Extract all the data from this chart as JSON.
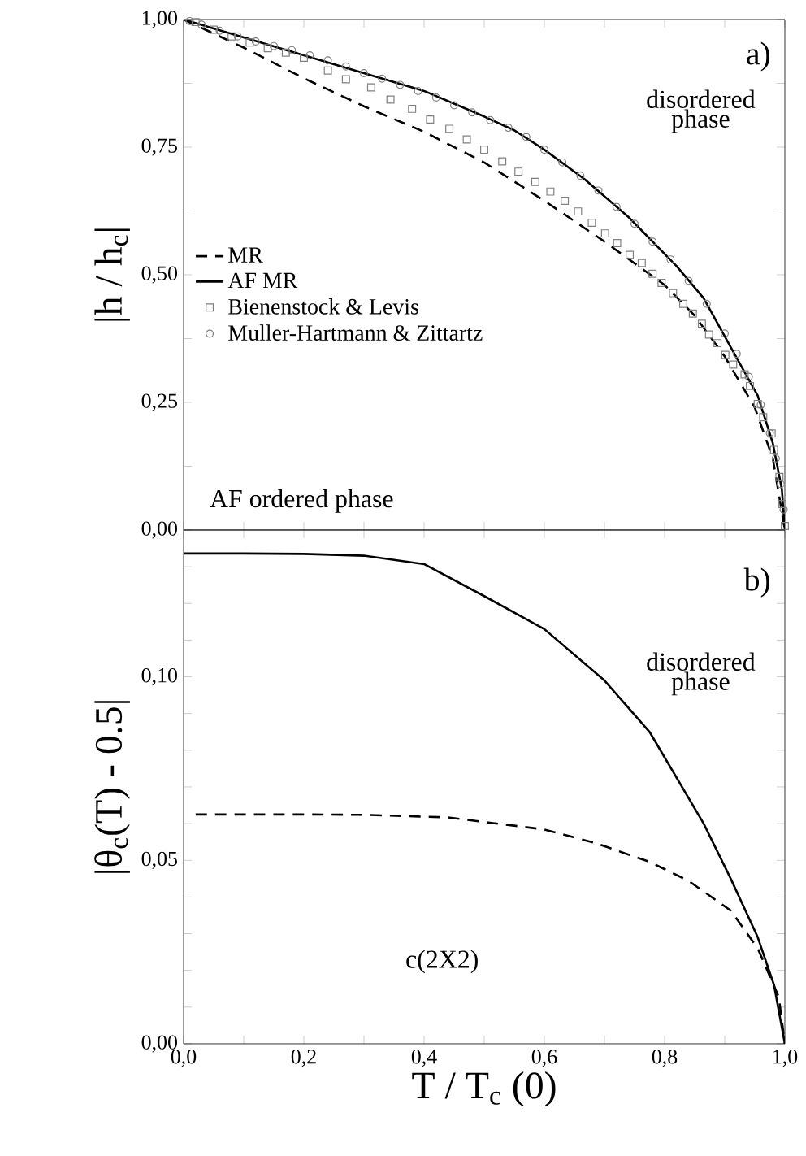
{
  "chart_data": [
    {
      "type": "line",
      "ylabel": "|h / h$_{c}$|",
      "xlim": [
        0,
        1
      ],
      "ylim": [
        0,
        1
      ],
      "tick_labels": "y",
      "legend": "left",
      "xticks": [
        {
          "value": 0,
          "label": null
        },
        {
          "value": 0.1,
          "label": null
        },
        {
          "value": 0.2,
          "label": null
        },
        {
          "value": 0.3,
          "label": null
        },
        {
          "value": 0.4,
          "label": null
        },
        {
          "value": 0.5,
          "label": null
        },
        {
          "value": 0.6,
          "label": null
        },
        {
          "value": 0.7,
          "label": null
        },
        {
          "value": 0.8,
          "label": null
        },
        {
          "value": 0.9,
          "label": null
        },
        {
          "value": 1,
          "label": null
        }
      ],
      "yticks": [
        {
          "value": 0,
          "label": "0,00"
        },
        {
          "value": 0.125,
          "label": null
        },
        {
          "value": 0.25,
          "label": "0,25"
        },
        {
          "value": 0.375,
          "label": null
        },
        {
          "value": 0.5,
          "label": "0,50"
        },
        {
          "value": 0.625,
          "label": null
        },
        {
          "value": 0.75,
          "label": "0,75"
        },
        {
          "value": 0.875,
          "label": null
        },
        {
          "value": 1,
          "label": "1,00"
        }
      ],
      "annotations": [
        "a)",
        "disordered phase",
        "AF ordered phase"
      ],
      "series": [
        {
          "name": "MR",
          "line_style": "dashed",
          "color": "#000000",
          "x": [
            0,
            0.1,
            0.2,
            0.3,
            0.4,
            0.5,
            0.6,
            0.7,
            0.8,
            0.85,
            0.9,
            0.95,
            0.98,
            1
          ],
          "values": [
            1,
            0.945,
            0.885,
            0.83,
            0.78,
            0.72,
            0.645,
            0.565,
            0.48,
            0.42,
            0.34,
            0.24,
            0.14,
            0
          ]
        },
        {
          "name": "AF MR",
          "line_style": "solid",
          "color": "#000000",
          "x": [
            0,
            0.1,
            0.2,
            0.3,
            0.4,
            0.5,
            0.55,
            0.6,
            0.667,
            0.74,
            0.82,
            0.865,
            0.91,
            0.955,
            0.98,
            0.995,
            1
          ],
          "values": [
            1,
            0.965,
            0.93,
            0.895,
            0.86,
            0.81,
            0.783,
            0.745,
            0.687,
            0.613,
            0.517,
            0.454,
            0.358,
            0.263,
            0.17,
            0.08,
            0
          ]
        },
        {
          "name": "Bienenstock & Levis",
          "type": "scatter",
          "marker": "square",
          "color": "#808080",
          "x": [
            0.02,
            0.05,
            0.08,
            0.11,
            0.14,
            0.17,
            0.2,
            0.24,
            0.27,
            0.312,
            0.344,
            0.38,
            0.41,
            0.442,
            0.471,
            0.5,
            0.53,
            0.557,
            0.585,
            0.61,
            0.634,
            0.656,
            0.679,
            0.701,
            0.721,
            0.742,
            0.762,
            0.78,
            0.795,
            0.814,
            0.831,
            0.847,
            0.862,
            0.874,
            0.888,
            0.901,
            0.914,
            0.933,
            0.942,
            0.955,
            0.964,
            0.978,
            0.982,
            0.991,
            0.996,
            1
          ],
          "values": [
            0.995,
            0.98,
            0.967,
            0.955,
            0.944,
            0.935,
            0.925,
            0.9,
            0.883,
            0.867,
            0.843,
            0.825,
            0.804,
            0.786,
            0.765,
            0.745,
            0.722,
            0.702,
            0.682,
            0.663,
            0.645,
            0.624,
            0.602,
            0.581,
            0.562,
            0.539,
            0.523,
            0.502,
            0.484,
            0.464,
            0.443,
            0.424,
            0.404,
            0.383,
            0.366,
            0.343,
            0.324,
            0.305,
            0.282,
            0.247,
            0.221,
            0.189,
            0.157,
            0.104,
            0.051,
            0.008
          ]
        },
        {
          "name": "Muller-Hartmann & Zittartz",
          "type": "scatter",
          "marker": "circle",
          "color": "#808080",
          "x": [
            0.01,
            0.03,
            0.06,
            0.09,
            0.12,
            0.15,
            0.18,
            0.21,
            0.24,
            0.27,
            0.3,
            0.33,
            0.36,
            0.39,
            0.42,
            0.45,
            0.48,
            0.51,
            0.54,
            0.57,
            0.6,
            0.63,
            0.66,
            0.69,
            0.72,
            0.75,
            0.78,
            0.81,
            0.84,
            0.87,
            0.9,
            0.92,
            0.94,
            0.96,
            0.975,
            0.985,
            0.993,
            0.998
          ],
          "values": [
            0.997,
            0.99,
            0.978,
            0.967,
            0.957,
            0.948,
            0.94,
            0.93,
            0.92,
            0.908,
            0.895,
            0.884,
            0.872,
            0.86,
            0.847,
            0.832,
            0.818,
            0.803,
            0.788,
            0.77,
            0.745,
            0.72,
            0.694,
            0.665,
            0.633,
            0.6,
            0.565,
            0.53,
            0.488,
            0.443,
            0.385,
            0.345,
            0.3,
            0.245,
            0.19,
            0.14,
            0.09,
            0.04
          ]
        }
      ]
    },
    {
      "type": "line",
      "xlabel": "T / T$_{c}$ (0)",
      "ylabel": "|θ$_{c}$(T) - 0.5|",
      "xlim": [
        0,
        1
      ],
      "ylim": [
        0,
        0.14
      ],
      "xticks": [
        {
          "value": 0,
          "label": "0,0"
        },
        {
          "value": 0.1,
          "label": null
        },
        {
          "value": 0.2,
          "label": "0,2"
        },
        {
          "value": 0.3,
          "label": null
        },
        {
          "value": 0.4,
          "label": "0,4"
        },
        {
          "value": 0.5,
          "label": null
        },
        {
          "value": 0.6,
          "label": "0,6"
        },
        {
          "value": 0.7,
          "label": null
        },
        {
          "value": 0.8,
          "label": "0,8"
        },
        {
          "value": 0.9,
          "label": null
        },
        {
          "value": 1,
          "label": "1,0"
        }
      ],
      "yticks": [
        {
          "value": 0,
          "label": "0,00"
        },
        {
          "value": 0.01,
          "label": null
        },
        {
          "value": 0.02,
          "label": null
        },
        {
          "value": 0.03,
          "label": null
        },
        {
          "value": 0.04,
          "label": null
        },
        {
          "value": 0.05,
          "label": "0,05"
        },
        {
          "value": 0.06,
          "label": null
        },
        {
          "value": 0.07,
          "label": null
        },
        {
          "value": 0.08,
          "label": null
        },
        {
          "value": 0.09,
          "label": null
        },
        {
          "value": 0.1,
          "label": "0,10"
        },
        {
          "value": 0.11,
          "label": null
        },
        {
          "value": 0.12,
          "label": null
        },
        {
          "value": 0.13,
          "label": null
        }
      ],
      "annotations": [
        "b)",
        "disordered phase",
        "c(2X2)"
      ],
      "series": [
        {
          "line_style": "solid",
          "color": "#000000",
          "x": [
            0,
            0.1,
            0.2,
            0.3,
            0.4,
            0.5,
            0.6,
            0.7,
            0.775,
            0.865,
            0.91,
            0.955,
            0.982,
            1
          ],
          "values": [
            0.1336,
            0.1336,
            0.1335,
            0.133,
            0.1307,
            0.122,
            0.113,
            0.099,
            0.085,
            0.06,
            0.045,
            0.029,
            0.016,
            0
          ]
        },
        {
          "line_style": "dashed",
          "color": "#000000",
          "x": [
            0.02,
            0.2,
            0.3,
            0.44,
            0.6,
            0.685,
            0.775,
            0.84,
            0.91,
            0.955,
            0.99,
            1
          ],
          "values": [
            0.0625,
            0.0625,
            0.0624,
            0.0617,
            0.0584,
            0.0547,
            0.0496,
            0.0444,
            0.0363,
            0.026,
            0.0127,
            0
          ]
        }
      ]
    }
  ]
}
